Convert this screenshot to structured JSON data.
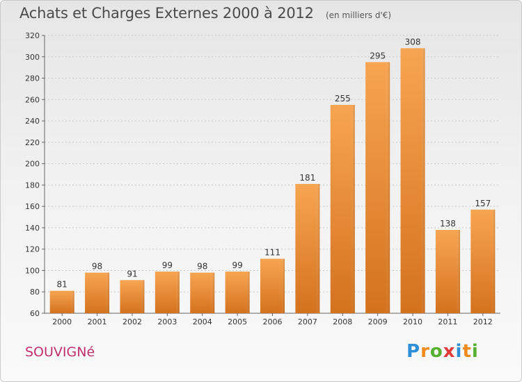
{
  "chart_data": {
    "type": "bar",
    "title": "Achats et Charges Externes 2000 à 2012",
    "subtitle": "(en milliers d'€)",
    "categories": [
      "2000",
      "2001",
      "2002",
      "2003",
      "2004",
      "2005",
      "2006",
      "2007",
      "2008",
      "2009",
      "2010",
      "2011",
      "2012"
    ],
    "values": [
      81,
      98,
      91,
      99,
      98,
      99,
      111,
      181,
      255,
      295,
      308,
      138,
      157
    ],
    "ylim": [
      60,
      320
    ],
    "yticks": [
      60,
      80,
      100,
      120,
      140,
      160,
      180,
      200,
      220,
      240,
      260,
      280,
      300,
      320
    ],
    "grid": true,
    "bar_color_top": "#f7a552",
    "bar_color_bottom": "#d4721e"
  },
  "footer": {
    "commune": "SOUVIGNé",
    "logo_letters": [
      "P",
      "r",
      "o",
      "x",
      "i",
      "t",
      "i"
    ],
    "logo_colors": [
      "#2f8fd6",
      "#f08a1c",
      "#55b02f",
      "#e23b3b",
      "#2f8fd6",
      "#f08a1c",
      "#55b02f"
    ]
  }
}
